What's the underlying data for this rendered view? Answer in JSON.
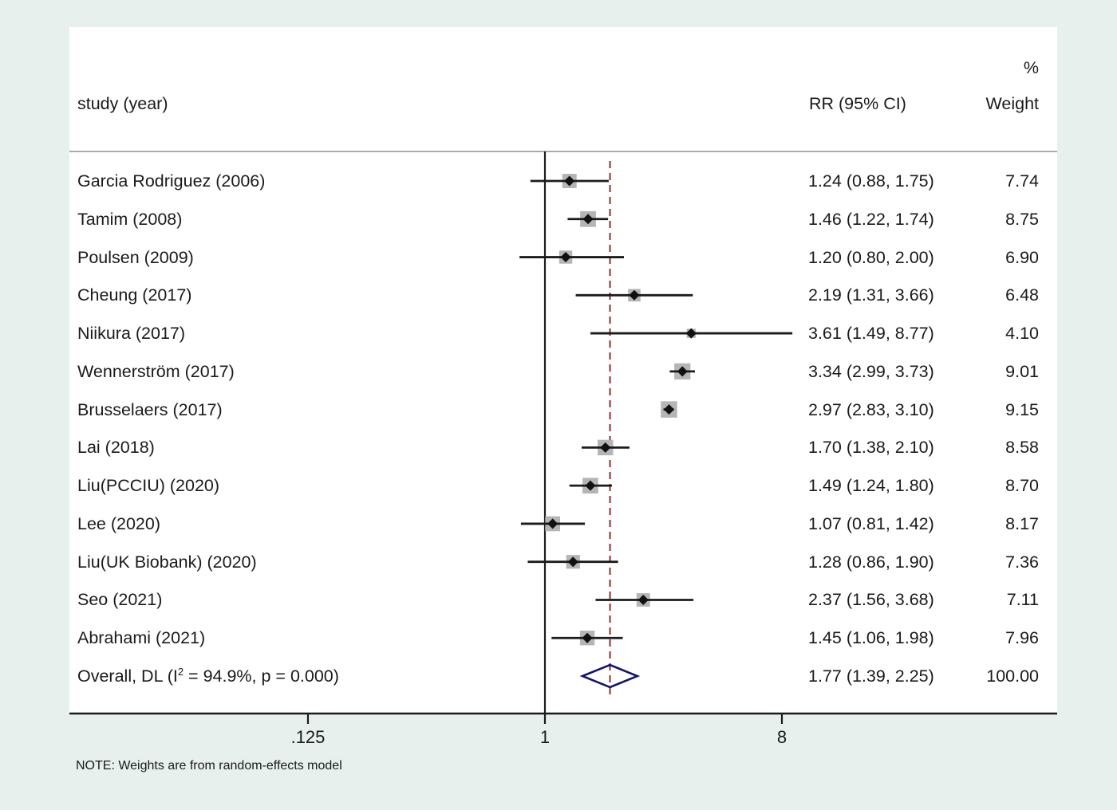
{
  "header": {
    "percent_label": "%",
    "study_col": "study (year)",
    "rr_col": "RR (95% CI)",
    "weight_col": "Weight"
  },
  "note": "NOTE: Weights are from random-effects model",
  "colors": {
    "background": "#e8f0ee",
    "panel": "#ffffff",
    "text": "#1a1a1a",
    "line": "#1b1b1b",
    "separator": "#aaaaaa",
    "weight_box": "#b5b5b5",
    "dashed_overall_line": "#8a453e",
    "overall_diamond": "#14146a"
  },
  "chart_data": {
    "type": "forest",
    "x_scale": "log2",
    "x_ticks": [
      0.125,
      1,
      8
    ],
    "x_tick_labels": [
      ".125",
      "1",
      "8"
    ],
    "null_line_value": 1,
    "effect_measure": "RR",
    "studies": [
      {
        "label": "Garcia Rodriguez (2006)",
        "rr": 1.24,
        "ci_low": 0.88,
        "ci_high": 1.75,
        "rr_ci_text": "1.24 (0.88, 1.75)",
        "weight": 7.74,
        "weight_text": "7.74"
      },
      {
        "label": "Tamim (2008)",
        "rr": 1.46,
        "ci_low": 1.22,
        "ci_high": 1.74,
        "rr_ci_text": "1.46 (1.22, 1.74)",
        "weight": 8.75,
        "weight_text": "8.75"
      },
      {
        "label": "Poulsen (2009)",
        "rr": 1.2,
        "ci_low": 0.8,
        "ci_high": 2.0,
        "rr_ci_text": "1.20 (0.80, 2.00)",
        "weight": 6.9,
        "weight_text": "6.90"
      },
      {
        "label": "Cheung (2017)",
        "rr": 2.19,
        "ci_low": 1.31,
        "ci_high": 3.66,
        "rr_ci_text": "2.19 (1.31, 3.66)",
        "weight": 6.48,
        "weight_text": "6.48"
      },
      {
        "label": "Niikura (2017)",
        "rr": 3.61,
        "ci_low": 1.49,
        "ci_high": 8.77,
        "rr_ci_text": "3.61 (1.49, 8.77)",
        "weight": 4.1,
        "weight_text": "4.10"
      },
      {
        "label": "Wennerström (2017)",
        "rr": 3.34,
        "ci_low": 2.99,
        "ci_high": 3.73,
        "rr_ci_text": "3.34 (2.99, 3.73)",
        "weight": 9.01,
        "weight_text": "9.01"
      },
      {
        "label": "Brusselaers (2017)",
        "rr": 2.97,
        "ci_low": 2.83,
        "ci_high": 3.1,
        "rr_ci_text": "2.97 (2.83, 3.10)",
        "weight": 9.15,
        "weight_text": "9.15"
      },
      {
        "label": "Lai (2018)",
        "rr": 1.7,
        "ci_low": 1.38,
        "ci_high": 2.1,
        "rr_ci_text": "1.70 (1.38, 2.10)",
        "weight": 8.58,
        "weight_text": "8.58"
      },
      {
        "label": "Liu(PCCIU) (2020)",
        "rr": 1.49,
        "ci_low": 1.24,
        "ci_high": 1.8,
        "rr_ci_text": "1.49 (1.24, 1.80)",
        "weight": 8.7,
        "weight_text": "8.70"
      },
      {
        "label": "Lee (2020)",
        "rr": 1.07,
        "ci_low": 0.81,
        "ci_high": 1.42,
        "rr_ci_text": "1.07 (0.81, 1.42)",
        "weight": 8.17,
        "weight_text": "8.17"
      },
      {
        "label": "Liu(UK Biobank) (2020)",
        "rr": 1.28,
        "ci_low": 0.86,
        "ci_high": 1.9,
        "rr_ci_text": "1.28 (0.86, 1.90)",
        "weight": 7.36,
        "weight_text": "7.36"
      },
      {
        "label": "Seo (2021)",
        "rr": 2.37,
        "ci_low": 1.56,
        "ci_high": 3.68,
        "rr_ci_text": "2.37 (1.56, 3.68)",
        "weight": 7.11,
        "weight_text": "7.11"
      },
      {
        "label": "Abrahami (2021)",
        "rr": 1.45,
        "ci_low": 1.06,
        "ci_high": 1.98,
        "rr_ci_text": "1.45 (1.06, 1.98)",
        "weight": 7.96,
        "weight_text": "7.96"
      }
    ],
    "overall": {
      "label_prefix": "Overall, DL (I",
      "label_sup": "2",
      "label_suffix": " = 94.9%, p = 0.000)",
      "rr": 1.77,
      "ci_low": 1.39,
      "ci_high": 2.25,
      "rr_ci_text": "1.77 (1.39, 2.25)",
      "weight_text": "100.00",
      "i_squared": "94.9%",
      "p_value": "0.000"
    }
  }
}
